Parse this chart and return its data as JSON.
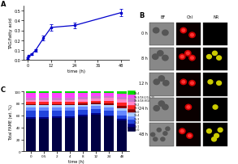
{
  "panel_A": {
    "time": [
      0,
      0.5,
      2,
      4,
      8,
      12,
      24,
      48
    ],
    "TAG_fatty_acid": [
      0.02,
      0.04,
      0.06,
      0.1,
      0.22,
      0.33,
      0.35,
      0.48
    ],
    "error": [
      0.005,
      0.005,
      0.008,
      0.012,
      0.025,
      0.03,
      0.03,
      0.04
    ],
    "color": "#0000cc",
    "ylabel": "TAG/fatty acid",
    "xlabel": "time (h)",
    "ylim": [
      0.0,
      0.55
    ],
    "xlim": [
      -2,
      52
    ],
    "xticks": [
      0,
      12,
      24,
      36,
      48
    ],
    "yticks": [
      0.0,
      0.1,
      0.2,
      0.3,
      0.4,
      0.5
    ],
    "label": "A"
  },
  "panel_C": {
    "time_labels": [
      "0",
      "0.5",
      "2",
      "4",
      "8",
      "12",
      "24",
      "48"
    ],
    "fatty_acids": [
      "18:4",
      "18:3/18:1/18:15",
      "18:3/18:9/18:12",
      "18:2",
      "18:1",
      "18:0",
      "16:4",
      "16:3",
      "16:2",
      "16:1",
      "16:0"
    ],
    "colors": [
      "#00dd00",
      "#ff44ff",
      "#cc77cc",
      "#ff88cc",
      "#ff2222",
      "#880000",
      "#aaccff",
      "#6688ff",
      "#2244dd",
      "#000088",
      "#000044"
    ],
    "data_pct": [
      [
        2.0,
        2.0,
        2.0,
        2.0,
        2.0,
        2.0,
        2.5,
        3.5
      ],
      [
        8.0,
        8.0,
        8.0,
        8.0,
        7.0,
        6.0,
        5.0,
        5.5
      ],
      [
        4.0,
        4.0,
        4.0,
        4.0,
        4.0,
        3.5,
        3.0,
        4.0
      ],
      [
        3.0,
        3.0,
        3.0,
        3.0,
        3.5,
        4.0,
        5.0,
        6.0
      ],
      [
        4.0,
        4.0,
        4.0,
        4.0,
        3.5,
        3.5,
        4.5,
        5.5
      ],
      [
        2.0,
        2.0,
        2.0,
        2.0,
        2.0,
        2.0,
        2.5,
        3.0
      ],
      [
        3.5,
        3.5,
        3.5,
        3.5,
        3.0,
        3.0,
        4.0,
        5.0
      ],
      [
        6.0,
        6.0,
        5.5,
        5.5,
        5.0,
        5.0,
        6.0,
        7.0
      ],
      [
        10.0,
        10.0,
        9.0,
        9.0,
        8.0,
        7.0,
        7.0,
        6.5
      ],
      [
        3.0,
        3.0,
        3.0,
        3.0,
        3.0,
        2.5,
        2.5,
        2.0
      ],
      [
        54.5,
        54.5,
        56.0,
        56.0,
        58.0,
        61.5,
        58.0,
        52.0
      ]
    ],
    "ylabel": "Total FAME (wt. %)",
    "xlabel": "time (h)",
    "ylim": [
      0,
      100
    ],
    "label": "C"
  },
  "panel_B": {
    "rows": [
      "0 h",
      "8 h",
      "12 h",
      "24 h",
      "48 h"
    ],
    "cols": [
      "BF",
      "Chl",
      "NR"
    ],
    "label": "B",
    "bf_gray": "#888888",
    "chl_bg": "#0a0000",
    "nr_bg": "#000000",
    "bf_bg": "#777777",
    "cell_edge": "#555555"
  }
}
